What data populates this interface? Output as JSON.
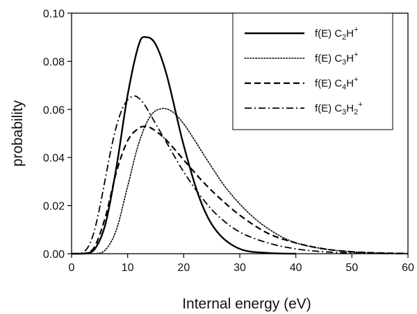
{
  "chart_data": {
    "type": "line",
    "title": "",
    "xlabel": "Internal energy (eV)",
    "ylabel": "probability",
    "xlim": [
      0,
      60
    ],
    "ylim": [
      0,
      0.1
    ],
    "xticks": [
      0,
      10,
      20,
      30,
      40,
      50,
      60
    ],
    "xtick_labels": [
      "0",
      "10",
      "20",
      "30",
      "40",
      "50",
      "60"
    ],
    "yticks": [
      0,
      0.02,
      0.04,
      0.06,
      0.08,
      0.1
    ],
    "ytick_labels": [
      "0.00",
      "0.02",
      "0.04",
      "0.06",
      "0.08",
      "0.10"
    ],
    "grid": false,
    "legend_position": "top-right",
    "series": [
      {
        "name": "f(E) C2H+",
        "label_parts": {
          "prefix": "f(E) C",
          "sub1": "2",
          "mid": "H",
          "sub2": "",
          "sup": "+"
        },
        "style": "solid",
        "x": [
          0,
          2,
          4,
          6,
          8,
          10,
          12,
          13.3,
          15,
          17,
          20,
          23,
          26,
          30,
          35,
          40
        ],
        "y": [
          0,
          0,
          0.0015,
          0.012,
          0.036,
          0.066,
          0.087,
          0.09,
          0.087,
          0.074,
          0.045,
          0.022,
          0.009,
          0.002,
          0.0003,
          0
        ]
      },
      {
        "name": "f(E) C3H+",
        "label_parts": {
          "prefix": "f(E) C",
          "sub1": "3",
          "mid": "H",
          "sub2": "",
          "sup": "+"
        },
        "style": "dotted",
        "x": [
          0,
          4,
          6,
          8,
          10,
          12,
          14,
          16,
          18,
          20,
          22,
          25,
          28,
          32,
          36,
          40,
          45,
          50,
          55,
          60
        ],
        "y": [
          0,
          0,
          0.0015,
          0.01,
          0.028,
          0.046,
          0.057,
          0.0603,
          0.059,
          0.054,
          0.047,
          0.036,
          0.026,
          0.016,
          0.009,
          0.0045,
          0.002,
          0.0008,
          0.0003,
          0.0001
        ]
      },
      {
        "name": "f(E) C4H+",
        "label_parts": {
          "prefix": "f(E) C",
          "sub1": "4",
          "mid": "H",
          "sub2": "",
          "sup": "+"
        },
        "style": "dashed",
        "x": [
          0,
          2,
          4,
          6,
          8,
          10,
          12,
          13.5,
          15,
          17,
          20,
          23,
          26,
          30,
          35,
          40,
          45,
          50,
          55,
          60
        ],
        "y": [
          0,
          0,
          0.0025,
          0.015,
          0.034,
          0.047,
          0.0522,
          0.0528,
          0.051,
          0.047,
          0.039,
          0.031,
          0.024,
          0.016,
          0.0085,
          0.0045,
          0.002,
          0.0008,
          0.0003,
          0.0001
        ]
      },
      {
        "name": "f(E) C3H2+",
        "label_parts": {
          "prefix": "f(E) C",
          "sub1": "3",
          "mid": "H",
          "sub2": "2",
          "sup": "+"
        },
        "style": "dashdot",
        "x": [
          0,
          1,
          2,
          3,
          4,
          5,
          6,
          7,
          8,
          9,
          10,
          11,
          11.8,
          13,
          15,
          17,
          20,
          23,
          26,
          30,
          35,
          40,
          45,
          50,
          55,
          60
        ],
        "y": [
          0,
          0,
          0.0005,
          0.003,
          0.009,
          0.019,
          0.031,
          0.043,
          0.053,
          0.06,
          0.064,
          0.0655,
          0.065,
          0.062,
          0.054,
          0.046,
          0.034,
          0.024,
          0.016,
          0.009,
          0.0045,
          0.002,
          0.0008,
          0.0003,
          0.0001,
          0
        ]
      }
    ]
  }
}
